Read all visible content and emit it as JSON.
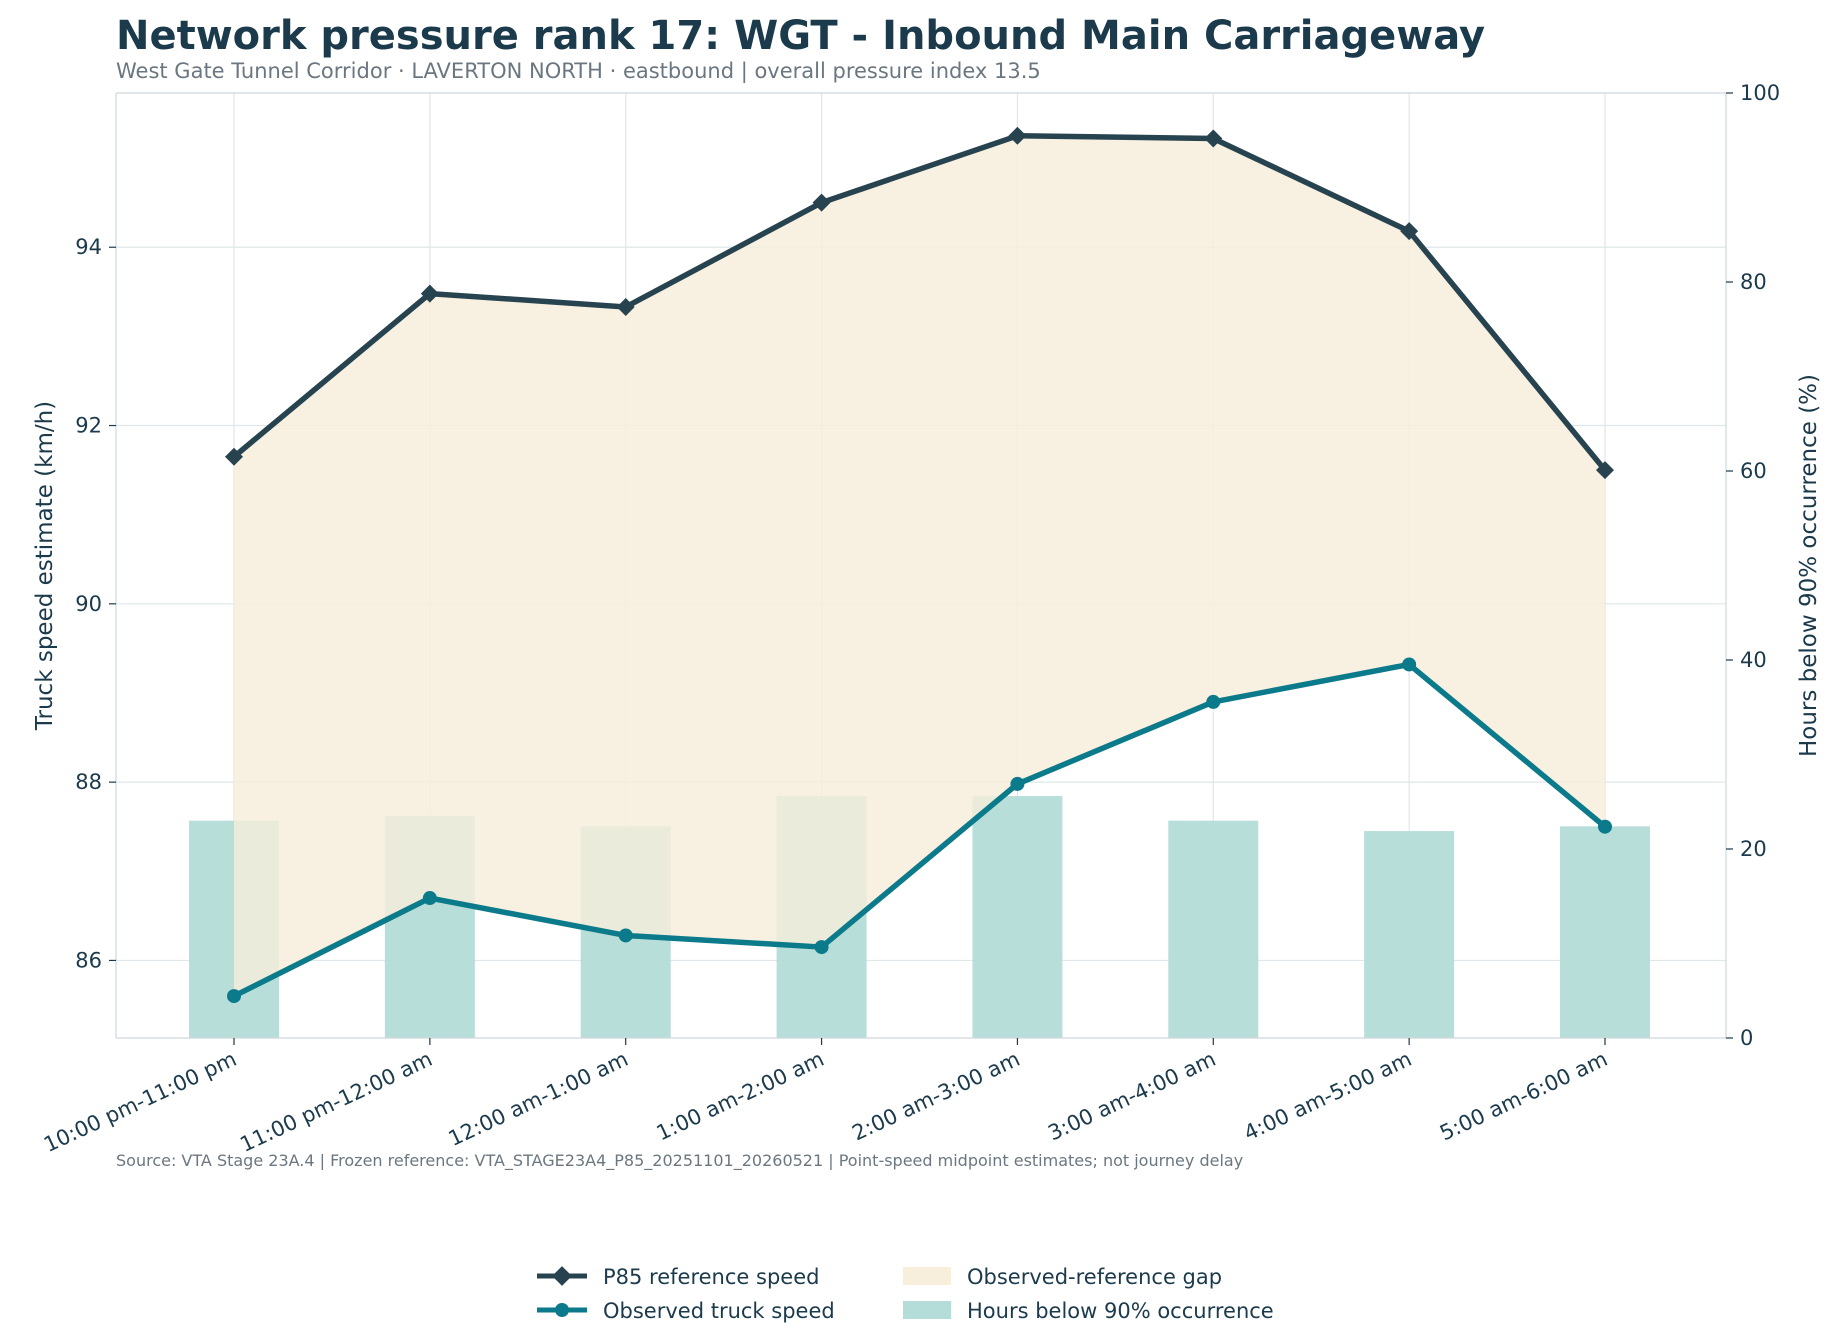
{
  "title": "Network pressure rank 17: WGT - Inbound Main Carriageway",
  "subtitle": "West Gate Tunnel Corridor · LAVERTON NORTH · eastbound | overall pressure index 13.5",
  "source_note": "Source: VTA Stage 23A.4 | Frozen reference: VTA_STAGE23A4_P85_20251101_20260521 | Point-speed midpoint estimates; not journey delay",
  "colors": {
    "reference": "#27434f",
    "observed": "#0b7a8a",
    "gap_fill": "#f7eedb",
    "bars": "#b4dcd8",
    "grid": "#dfe7ea",
    "axis": "#cdd8dc",
    "text": "#1b3a4b"
  },
  "chart_data": {
    "type": "line",
    "categories": [
      "10:00 pm-11:00 pm",
      "11:00 pm-12:00 am",
      "12:00 am-1:00 am",
      "1:00 am-2:00 am",
      "2:00 am-3:00 am",
      "3:00 am-4:00 am",
      "4:00 am-5:00 am",
      "5:00 am-6:00 am"
    ],
    "series": [
      {
        "name": "P85 reference speed",
        "kind": "line",
        "axis": "left",
        "marker": "diamond",
        "values": [
          91.65,
          93.48,
          93.33,
          94.5,
          95.25,
          95.22,
          94.18,
          91.5
        ]
      },
      {
        "name": "Observed truck speed",
        "kind": "line",
        "axis": "left",
        "marker": "circle",
        "values": [
          85.6,
          86.7,
          86.28,
          86.15,
          87.98,
          88.9,
          89.32,
          87.5
        ]
      },
      {
        "name": "Hours below 90% occurrence",
        "kind": "bar",
        "axis": "right",
        "values": [
          23.0,
          23.5,
          22.4,
          25.6,
          25.6,
          23.0,
          21.9,
          22.4
        ]
      }
    ],
    "fill_between": {
      "name": "Observed-reference gap",
      "upper": "P85 reference speed",
      "lower": "Observed truck speed"
    },
    "ylabel": "Truck speed estimate (km/h)",
    "ylabel_right": "Hours below 90% occurrence (%)",
    "ylim": [
      85.13,
      95.73
    ],
    "ylim_right": [
      0,
      100
    ],
    "yticks": [
      86,
      88,
      90,
      92,
      94
    ],
    "yticks_right": [
      0,
      20,
      40,
      60,
      80,
      100
    ],
    "grid": true,
    "legend_position": "bottom-center"
  }
}
